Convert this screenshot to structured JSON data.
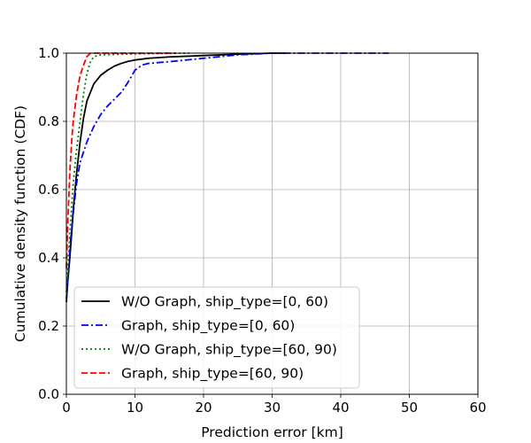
{
  "chart_data": {
    "type": "line",
    "title": "",
    "xlabel": "Prediction error [km]",
    "ylabel": "Cumulative density function (CDF)",
    "xlim": [
      0,
      60
    ],
    "ylim": [
      0,
      1.0
    ],
    "xticks": [
      "0",
      "10",
      "20",
      "30",
      "40",
      "50",
      "60"
    ],
    "yticks": [
      "0.0",
      "0.2",
      "0.4",
      "0.6",
      "0.8",
      "1.0"
    ],
    "grid": true,
    "legend_position": "lower-left",
    "series": [
      {
        "name": "W/O Graph, ship_type=[0, 60)",
        "color": "#000000",
        "linestyle": "solid",
        "points": [
          [
            0.0,
            0.27
          ],
          [
            0.2,
            0.33
          ],
          [
            0.5,
            0.4
          ],
          [
            0.8,
            0.48
          ],
          [
            1.0,
            0.54
          ],
          [
            1.5,
            0.65
          ],
          [
            2.0,
            0.74
          ],
          [
            2.5,
            0.81
          ],
          [
            3.0,
            0.86
          ],
          [
            4.0,
            0.91
          ],
          [
            5.0,
            0.935
          ],
          [
            6.0,
            0.95
          ],
          [
            7.0,
            0.962
          ],
          [
            8.0,
            0.97
          ],
          [
            9.0,
            0.976
          ],
          [
            10.0,
            0.98
          ],
          [
            12.0,
            0.985
          ],
          [
            15.0,
            0.989
          ],
          [
            20.0,
            0.993
          ],
          [
            25.0,
            0.997
          ],
          [
            30.0,
            1.0
          ],
          [
            32.0,
            1.0
          ]
        ]
      },
      {
        "name": "Graph, ship_type=[0, 60)",
        "color": "#0000ff",
        "linestyle": "dashdot",
        "points": [
          [
            0.0,
            0.28
          ],
          [
            0.3,
            0.36
          ],
          [
            0.6,
            0.45
          ],
          [
            1.0,
            0.53
          ],
          [
            1.5,
            0.62
          ],
          [
            2.0,
            0.68
          ],
          [
            3.0,
            0.74
          ],
          [
            4.0,
            0.785
          ],
          [
            5.0,
            0.82
          ],
          [
            6.0,
            0.845
          ],
          [
            7.0,
            0.865
          ],
          [
            8.0,
            0.885
          ],
          [
            9.0,
            0.915
          ],
          [
            10.0,
            0.95
          ],
          [
            11.0,
            0.965
          ],
          [
            12.0,
            0.97
          ],
          [
            15.0,
            0.975
          ],
          [
            20.0,
            0.985
          ],
          [
            25.0,
            0.995
          ],
          [
            30.0,
            1.0
          ],
          [
            40.0,
            1.0
          ],
          [
            47.0,
            1.0
          ]
        ]
      },
      {
        "name": "W/O Graph, ship_type=[60, 90)",
        "color": "#008000",
        "linestyle": "dotted",
        "points": [
          [
            0.0,
            0.3
          ],
          [
            0.2,
            0.37
          ],
          [
            0.5,
            0.47
          ],
          [
            0.8,
            0.56
          ],
          [
            1.0,
            0.62
          ],
          [
            1.5,
            0.72
          ],
          [
            2.0,
            0.8
          ],
          [
            2.5,
            0.88
          ],
          [
            3.0,
            0.94
          ],
          [
            3.5,
            0.975
          ],
          [
            4.0,
            0.99
          ],
          [
            5.0,
            0.995
          ],
          [
            10.0,
            0.998
          ],
          [
            18.0,
            1.0
          ]
        ]
      },
      {
        "name": "Graph, ship_type=[60, 90)",
        "color": "#ff0000",
        "linestyle": "dashed",
        "points": [
          [
            0.0,
            0.37
          ],
          [
            0.2,
            0.5
          ],
          [
            0.5,
            0.65
          ],
          [
            0.8,
            0.75
          ],
          [
            1.0,
            0.8
          ],
          [
            1.5,
            0.88
          ],
          [
            2.0,
            0.935
          ],
          [
            2.5,
            0.965
          ],
          [
            3.0,
            0.99
          ],
          [
            3.5,
            1.0
          ],
          [
            5.0,
            1.0
          ],
          [
            10.0,
            1.0
          ],
          [
            16.0,
            1.0
          ]
        ]
      }
    ]
  }
}
